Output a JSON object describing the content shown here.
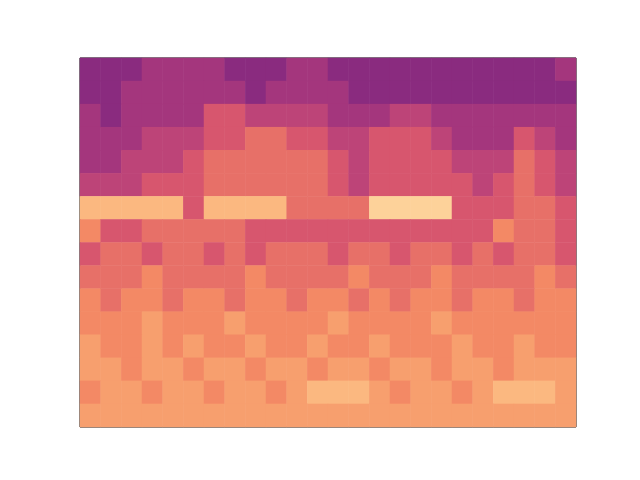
{
  "chart_data": {
    "type": "heatmap",
    "tick_labels": false,
    "cells": [
      [
        2,
        2,
        2,
        3,
        3,
        3,
        3,
        2,
        2,
        2,
        3,
        3,
        2,
        2,
        2,
        2,
        2,
        2,
        2,
        2,
        2,
        2,
        2,
        3
      ],
      [
        2,
        2,
        3,
        3,
        3,
        3,
        3,
        3,
        2,
        3,
        3,
        3,
        3,
        2,
        2,
        2,
        2,
        2,
        2,
        2,
        2,
        2,
        2,
        2
      ],
      [
        3,
        2,
        3,
        3,
        3,
        3,
        5,
        5,
        4,
        4,
        4,
        4,
        3,
        3,
        3,
        4,
        4,
        3,
        3,
        3,
        3,
        3,
        3,
        3
      ],
      [
        3,
        3,
        3,
        4,
        4,
        4,
        5,
        5,
        6,
        6,
        5,
        5,
        4,
        4,
        5,
        5,
        5,
        4,
        3,
        3,
        3,
        5,
        4,
        3
      ],
      [
        3,
        3,
        4,
        4,
        4,
        5,
        6,
        6,
        6,
        6,
        6,
        6,
        5,
        4,
        5,
        5,
        5,
        5,
        4,
        4,
        4,
        6,
        5,
        4
      ],
      [
        4,
        4,
        4,
        5,
        5,
        5,
        6,
        6,
        6,
        6,
        6,
        6,
        5,
        4,
        5,
        5,
        5,
        5,
        5,
        4,
        5,
        6,
        5,
        4
      ],
      [
        9,
        9,
        9,
        9,
        9,
        5,
        9,
        9,
        9,
        9,
        6,
        6,
        6,
        6,
        10,
        10,
        10,
        10,
        5,
        5,
        5,
        6,
        6,
        5
      ],
      [
        7,
        5,
        5,
        6,
        6,
        6,
        6,
        6,
        5,
        5,
        5,
        5,
        5,
        5,
        5,
        5,
        5,
        5,
        5,
        5,
        7,
        6,
        6,
        5
      ],
      [
        5,
        6,
        6,
        5,
        6,
        6,
        5,
        6,
        5,
        6,
        6,
        6,
        5,
        6,
        6,
        5,
        6,
        6,
        5,
        6,
        5,
        6,
        6,
        5
      ],
      [
        6,
        6,
        6,
        7,
        6,
        6,
        6,
        6,
        7,
        6,
        6,
        6,
        6,
        7,
        6,
        6,
        6,
        7,
        6,
        6,
        6,
        6,
        7,
        6
      ],
      [
        7,
        6,
        7,
        7,
        6,
        7,
        7,
        6,
        7,
        7,
        6,
        7,
        7,
        6,
        7,
        6,
        7,
        7,
        6,
        7,
        7,
        6,
        7,
        7
      ],
      [
        7,
        7,
        7,
        8,
        7,
        7,
        7,
        8,
        7,
        7,
        7,
        7,
        8,
        7,
        7,
        7,
        7,
        8,
        7,
        7,
        7,
        7,
        7,
        7
      ],
      [
        8,
        7,
        7,
        8,
        7,
        8,
        7,
        7,
        8,
        7,
        7,
        8,
        7,
        7,
        8,
        7,
        7,
        7,
        8,
        7,
        7,
        8,
        7,
        7
      ],
      [
        8,
        8,
        7,
        8,
        8,
        7,
        8,
        8,
        7,
        8,
        8,
        7,
        8,
        8,
        7,
        8,
        8,
        7,
        8,
        8,
        7,
        8,
        8,
        8
      ],
      [
        7,
        8,
        8,
        7,
        8,
        8,
        7,
        8,
        8,
        7,
        8,
        9,
        9,
        9,
        8,
        7,
        8,
        8,
        7,
        8,
        9,
        9,
        9,
        8
      ],
      [
        8,
        8,
        8,
        8,
        8,
        8,
        8,
        8,
        8,
        8,
        8,
        8,
        8,
        8,
        8,
        8,
        8,
        8,
        8,
        8,
        8,
        8,
        8,
        8
      ]
    ]
  }
}
